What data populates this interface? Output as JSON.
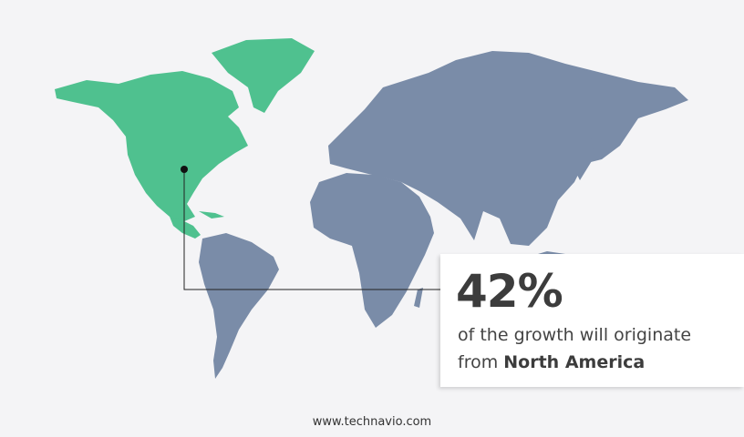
{
  "callout": {
    "percentage": "42%",
    "line1": "of the growth will originate",
    "line2_prefix": "from ",
    "region": "North America"
  },
  "footer": {
    "website": "www.technavio.com"
  },
  "colors": {
    "highlight_region": "#4fc18f",
    "other_regions": "#7a8ca8"
  },
  "map": {
    "highlighted_region": "North America"
  }
}
